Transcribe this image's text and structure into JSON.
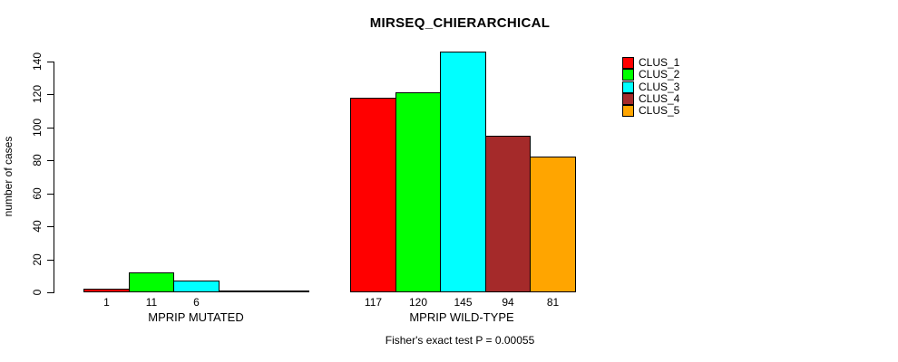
{
  "chart_data": {
    "type": "bar",
    "title": "MIRSEQ_CHIERARCHICAL",
    "ylabel": "number of cases",
    "ylim": [
      0,
      140
    ],
    "yticks": [
      0,
      20,
      40,
      60,
      80,
      100,
      120,
      140
    ],
    "grid": false,
    "legend_position": "top-right",
    "series": [
      {
        "name": "CLUS_1",
        "color": "#FF0000"
      },
      {
        "name": "CLUS_2",
        "color": "#00FF00"
      },
      {
        "name": "CLUS_3",
        "color": "#00FFFF"
      },
      {
        "name": "CLUS_4",
        "color": "#A52A2A"
      },
      {
        "name": "CLUS_5",
        "color": "#FFA500"
      }
    ],
    "groups": [
      {
        "label": "MPRIP MUTATED",
        "values": [
          1,
          11,
          6,
          0,
          0
        ],
        "bar_labels": [
          "1",
          "11",
          "6",
          "",
          ""
        ]
      },
      {
        "label": "MPRIP WILD-TYPE",
        "values": [
          117,
          120,
          145,
          94,
          81
        ],
        "bar_labels": [
          "117",
          "120",
          "145",
          "94",
          "81"
        ]
      }
    ],
    "caption": "Fisher's exact test P = 0.00055"
  }
}
